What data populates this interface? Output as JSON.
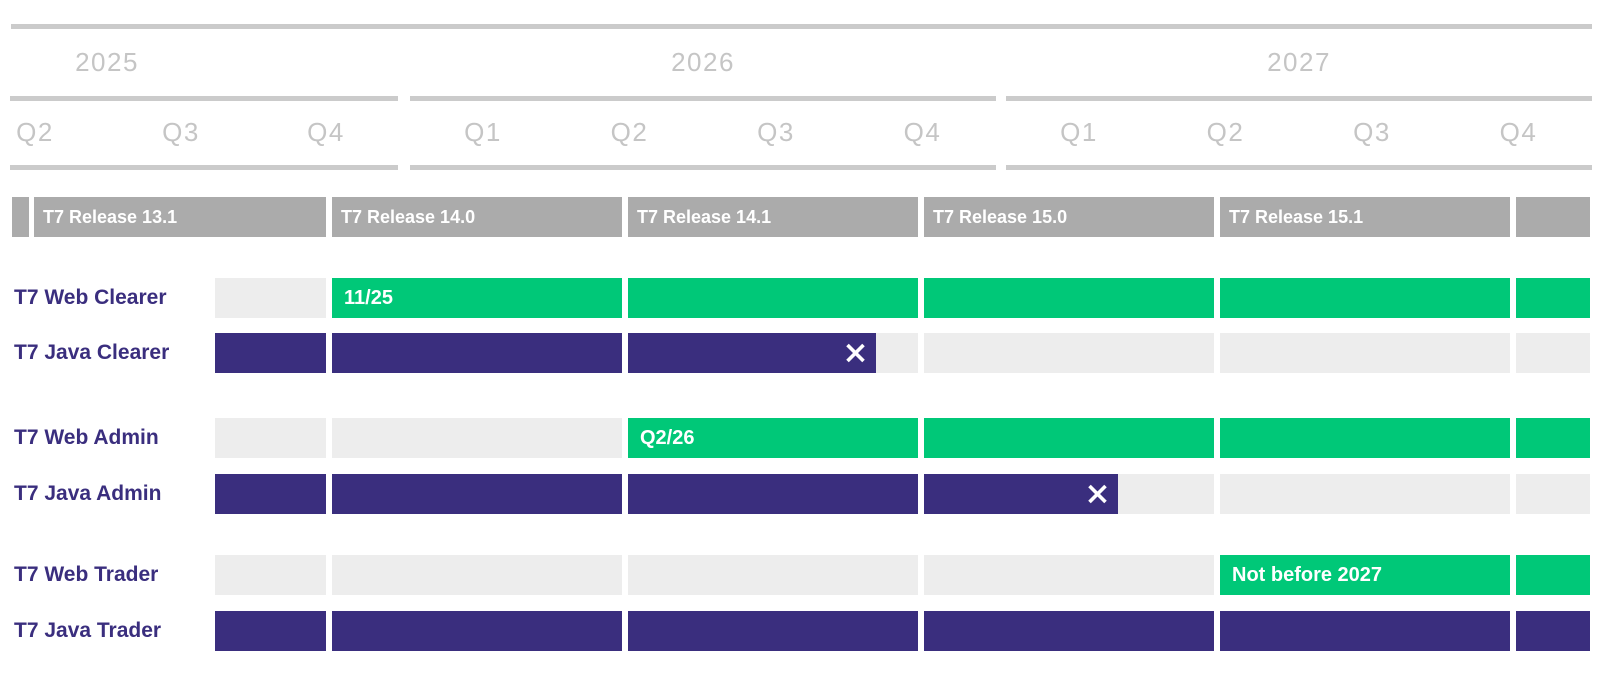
{
  "colors": {
    "active_green": "#00C878",
    "legacy_purple": "#3A2E7E",
    "inactive_gray": "#EDEDED",
    "release_gray": "#ABABAB",
    "axis_line_gray": "#CBCBCB",
    "axis_text_gray": "#C5C5C5",
    "bar_text_white": "#FFFFFF",
    "row_label_purple": "#3A2E7E"
  },
  "chart_data": {
    "type": "gantt",
    "title": "",
    "legend_position": "none",
    "grid": "off",
    "timeline": {
      "years": [
        {
          "label": "2025",
          "quarters": [
            "Q2",
            "Q3",
            "Q4"
          ]
        },
        {
          "label": "2026",
          "quarters": [
            "Q1",
            "Q2",
            "Q3",
            "Q4"
          ]
        },
        {
          "label": "2027",
          "quarters": [
            "Q1",
            "Q2",
            "Q3",
            "Q4"
          ]
        }
      ]
    },
    "release_columns": [
      {
        "label": ""
      },
      {
        "label": "T7 Release 13.1"
      },
      {
        "label": "T7 Release 14.0"
      },
      {
        "label": "T7 Release 14.1"
      },
      {
        "label": "T7 Release 15.0"
      },
      {
        "label": "T7 Release 15.1"
      },
      {
        "label": ""
      }
    ],
    "rows": [
      {
        "label": "T7 Web Clearer",
        "cells": [
          {
            "col": 0,
            "state": "inactive"
          },
          {
            "col": 1,
            "state": "active",
            "label": "11/25"
          },
          {
            "col": 2,
            "state": "active"
          },
          {
            "col": 3,
            "state": "active"
          },
          {
            "col": 4,
            "state": "active"
          },
          {
            "col": 5,
            "state": "active"
          }
        ]
      },
      {
        "label": "T7 Java Clearer",
        "cells": [
          {
            "col": 0,
            "state": "legacy"
          },
          {
            "col": 1,
            "state": "legacy"
          },
          {
            "col": 2,
            "state": "legacy_ending",
            "end_fraction": 0.855,
            "marker": "x"
          },
          {
            "col": 3,
            "state": "inactive"
          },
          {
            "col": 4,
            "state": "inactive"
          },
          {
            "col": 5,
            "state": "inactive"
          }
        ]
      },
      {
        "label": "T7 Web Admin",
        "cells": [
          {
            "col": 0,
            "state": "inactive"
          },
          {
            "col": 1,
            "state": "inactive"
          },
          {
            "col": 2,
            "state": "active",
            "label": "Q2/26"
          },
          {
            "col": 3,
            "state": "active"
          },
          {
            "col": 4,
            "state": "active"
          },
          {
            "col": 5,
            "state": "active"
          }
        ]
      },
      {
        "label": "T7 Java Admin",
        "cells": [
          {
            "col": 0,
            "state": "legacy"
          },
          {
            "col": 1,
            "state": "legacy"
          },
          {
            "col": 2,
            "state": "legacy"
          },
          {
            "col": 3,
            "state": "legacy_ending",
            "end_fraction": 0.669,
            "marker": "x"
          },
          {
            "col": 4,
            "state": "inactive"
          },
          {
            "col": 5,
            "state": "inactive"
          }
        ]
      },
      {
        "label": "T7 Web Trader",
        "cells": [
          {
            "col": 0,
            "state": "inactive"
          },
          {
            "col": 1,
            "state": "inactive"
          },
          {
            "col": 2,
            "state": "inactive"
          },
          {
            "col": 3,
            "state": "inactive"
          },
          {
            "col": 4,
            "state": "active",
            "label": "Not before 2027"
          },
          {
            "col": 5,
            "state": "active"
          }
        ]
      },
      {
        "label": "T7 Java Trader",
        "cells": [
          {
            "col": 0,
            "state": "legacy"
          },
          {
            "col": 1,
            "state": "legacy"
          },
          {
            "col": 2,
            "state": "legacy"
          },
          {
            "col": 3,
            "state": "legacy"
          },
          {
            "col": 4,
            "state": "legacy"
          },
          {
            "col": 5,
            "state": "legacy"
          }
        ]
      }
    ]
  }
}
